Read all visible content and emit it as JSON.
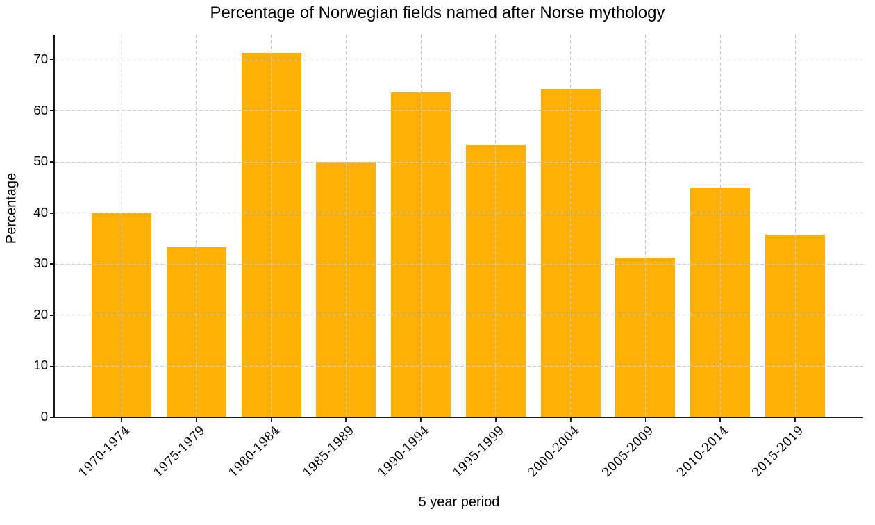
{
  "chart_data": {
    "type": "bar",
    "title": "Percentage of Norwegian fields named after Norse mythology",
    "xlabel": "5 year period",
    "ylabel": "Percentage",
    "categories": [
      "1970-1974",
      "1975-1979",
      "1980-1984",
      "1985-1989",
      "1990-1994",
      "1995-1999",
      "2000-2004",
      "2005-2009",
      "2010-2014",
      "2015-2019"
    ],
    "values": [
      40.0,
      33.3,
      71.4,
      50.0,
      63.6,
      53.3,
      64.3,
      31.2,
      45.0,
      35.7
    ],
    "yticks": [
      0,
      10,
      20,
      30,
      40,
      50,
      60,
      70
    ],
    "ylim": [
      0,
      74.9
    ],
    "grid": {
      "visible": true,
      "style": "dashed",
      "axes": "both",
      "drawn_above_bars": true
    },
    "legend_position": "none",
    "x_tick_rotation_deg": 45,
    "colors": {
      "bar": "#FFB005",
      "grid": "#C9C9C9",
      "axis": "#1A1A1A",
      "text": "#000000",
      "background": "#FFFFFF"
    }
  }
}
